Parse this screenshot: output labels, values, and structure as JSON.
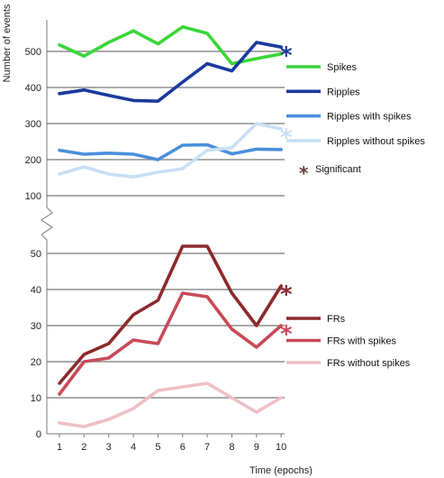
{
  "chart_data": [
    {
      "type": "line",
      "ylabel": "Number of events",
      "ylim": [
        100,
        580
      ],
      "yticks": [
        100,
        200,
        300,
        400,
        500
      ],
      "x": [
        1,
        2,
        3,
        4,
        5,
        6,
        7,
        8,
        9,
        10
      ],
      "series": [
        {
          "name": "Spikes",
          "color": "#3ad63a",
          "values": [
            518,
            487,
            525,
            557,
            521,
            568,
            550,
            466,
            480,
            493
          ],
          "significant": false
        },
        {
          "name": "Ripples",
          "color": "#1a3a9c",
          "values": [
            383,
            393,
            378,
            364,
            362,
            415,
            466,
            446,
            525,
            512
          ],
          "significant": true
        },
        {
          "name": "Ripples with spikes",
          "color": "#4a8fdc",
          "values": [
            226,
            215,
            218,
            215,
            200,
            240,
            241,
            216,
            229,
            228
          ],
          "significant": false
        },
        {
          "name": "Ripples without spikes",
          "color": "#c8e0f4",
          "values": [
            160,
            180,
            160,
            152,
            165,
            175,
            226,
            233,
            300,
            285
          ],
          "significant": true
        }
      ],
      "grid": true
    },
    {
      "type": "line",
      "xlabel": "Time (epochs)",
      "ylim": [
        0,
        55
      ],
      "yticks": [
        0,
        10,
        20,
        30,
        40,
        50
      ],
      "x": [
        1,
        2,
        3,
        4,
        5,
        6,
        7,
        8,
        9,
        10
      ],
      "series": [
        {
          "name": "FRs",
          "color": "#8c2a2c",
          "values": [
            14,
            22,
            25,
            33,
            37,
            52,
            52,
            39,
            30,
            41
          ],
          "significant": true
        },
        {
          "name": "FRs with spikes",
          "color": "#c84a58",
          "values": [
            11,
            20,
            21,
            26,
            25,
            39,
            38,
            29,
            24,
            30
          ],
          "significant": true
        },
        {
          "name": "FRs without spikes",
          "color": "#efc0c4",
          "values": [
            3,
            2,
            4,
            7,
            12,
            13,
            14,
            10,
            6,
            10
          ],
          "significant": false
        }
      ],
      "grid": true
    }
  ],
  "legend": {
    "significant_label": "Significant",
    "significant_color": "#6b3a3a"
  },
  "star_glyph": "*"
}
